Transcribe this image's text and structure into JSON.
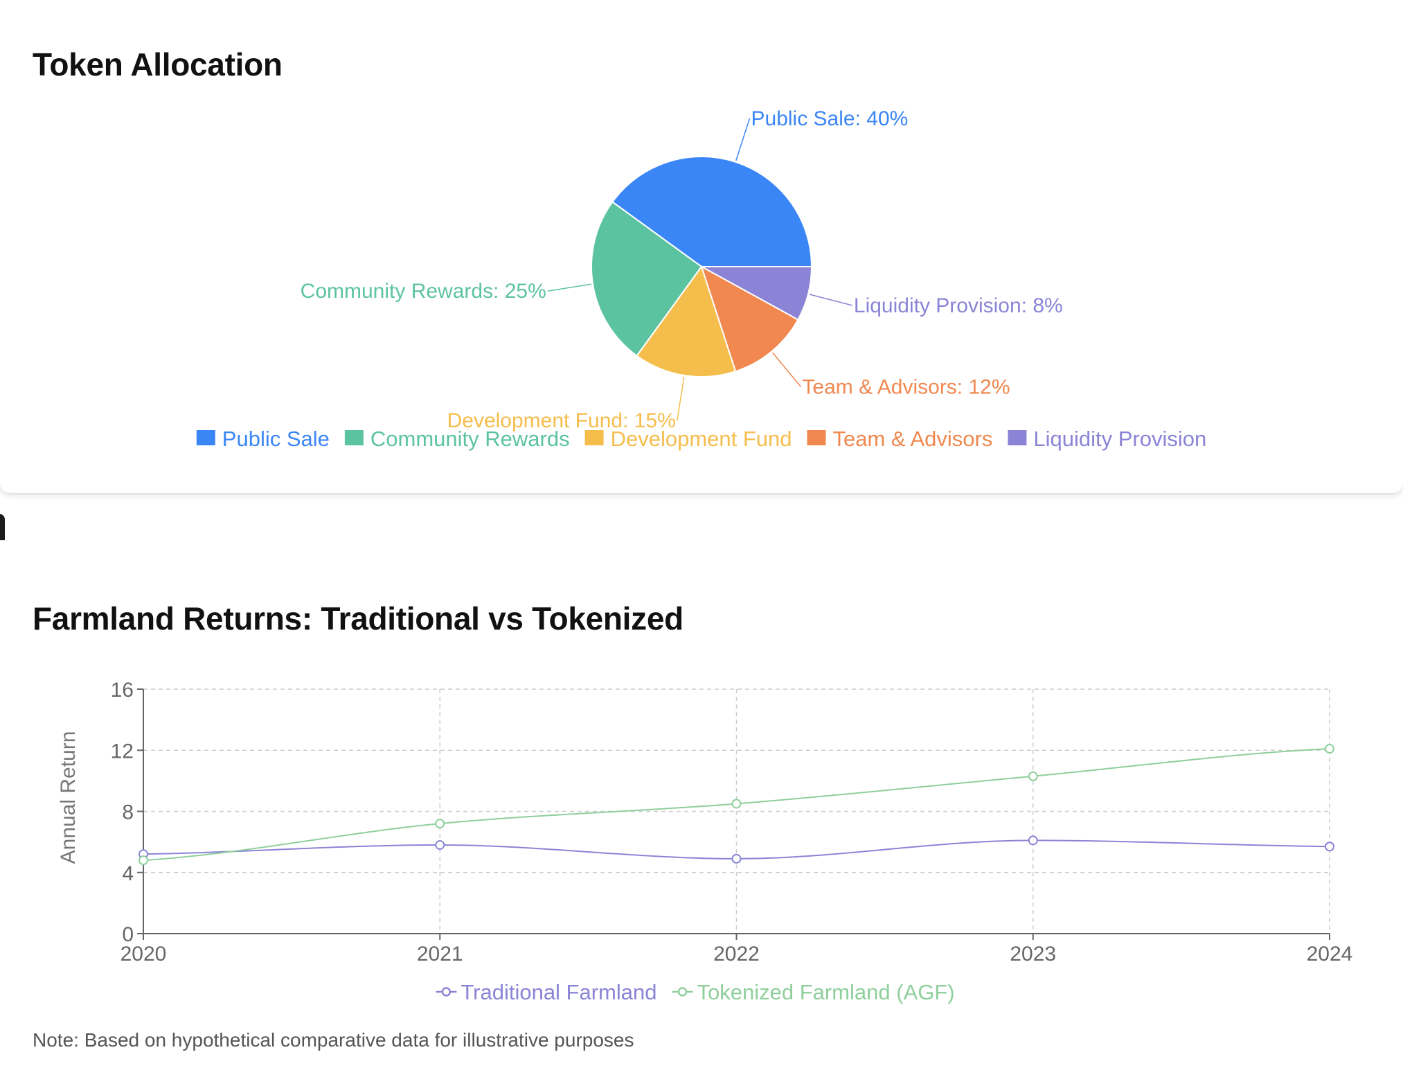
{
  "cards": {
    "allocation": {
      "title": "Token Allocation"
    },
    "returns": {
      "title": "Farmland Returns: Traditional vs Tokenized"
    }
  },
  "note": "Note: Based on hypothetical comparative data for illustrative purposes",
  "chart_data": [
    {
      "type": "pie",
      "title": "Token Allocation",
      "slices": [
        {
          "name": "Public Sale",
          "value": 40,
          "label": "Public Sale: 40%",
          "color": "#3b86f6"
        },
        {
          "name": "Liquidity Provision",
          "value": 8,
          "label": "Liquidity Provision: 8%",
          "color": "#8b84d6"
        },
        {
          "name": "Team & Advisors",
          "value": 12,
          "label": "Team & Advisors: 12%",
          "color": "#f08850"
        },
        {
          "name": "Development Fund",
          "value": 15,
          "label": "Development Fund: 15%",
          "color": "#f5bd4c"
        },
        {
          "name": "Community Rewards",
          "value": 25,
          "label": "Community Rewards: 25%",
          "color": "#5cc3a0"
        }
      ],
      "legend": {
        "placement": "bottom",
        "order": [
          "Public Sale",
          "Community Rewards",
          "Development Fund",
          "Team & Advisors",
          "Liquidity Provision"
        ]
      }
    },
    {
      "type": "line",
      "title": "Farmland Returns: Traditional vs Tokenized",
      "x": [
        "2020",
        "2021",
        "2022",
        "2023",
        "2024"
      ],
      "ylabel": "Annual Return",
      "ylim": [
        0,
        16
      ],
      "yticks": [
        0,
        4,
        8,
        12,
        16
      ],
      "grid": true,
      "legend": {
        "placement": "bottom"
      },
      "series": [
        {
          "name": "Traditional Farmland",
          "values": [
            5.2,
            5.8,
            4.9,
            6.1,
            5.7
          ],
          "color": "#8b84d6"
        },
        {
          "name": "Tokenized Farmland (AGF)",
          "values": [
            4.8,
            7.2,
            8.5,
            10.3,
            12.1
          ],
          "color": "#8fcf9c"
        }
      ]
    }
  ]
}
